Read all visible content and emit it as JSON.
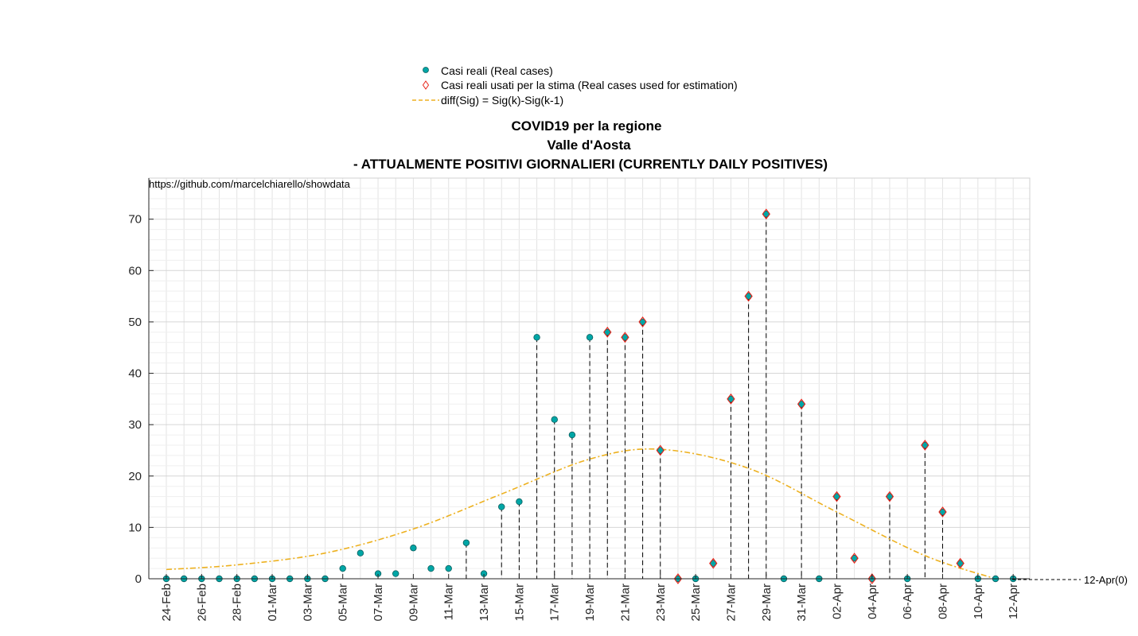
{
  "chart_data": {
    "type": "scatter",
    "title_lines": [
      "COVID19 per la regione",
      "Valle d'Aosta",
      "- ATTUALMENTE POSITIVI GIORNALIERI (CURRENTLY DAILY POSITIVES)"
    ],
    "source_text": "https://github.com/marcelchiarello/showdata",
    "end_label": "12-Apr(0)",
    "xlabel": "",
    "ylabel": "",
    "ylim": [
      0,
      78
    ],
    "y_ticks": [
      0,
      10,
      20,
      30,
      40,
      50,
      60,
      70
    ],
    "grid": true,
    "legend_position": "top-center",
    "x": [
      "24-Feb",
      "25-Feb",
      "26-Feb",
      "27-Feb",
      "28-Feb",
      "29-Feb",
      "01-Mar",
      "02-Mar",
      "03-Mar",
      "04-Mar",
      "05-Mar",
      "06-Mar",
      "07-Mar",
      "08-Mar",
      "09-Mar",
      "10-Mar",
      "11-Mar",
      "12-Mar",
      "13-Mar",
      "14-Mar",
      "15-Mar",
      "16-Mar",
      "17-Mar",
      "18-Mar",
      "19-Mar",
      "20-Mar",
      "21-Mar",
      "22-Mar",
      "23-Mar",
      "24-Mar",
      "25-Mar",
      "26-Mar",
      "27-Mar",
      "28-Mar",
      "29-Mar",
      "30-Mar",
      "31-Mar",
      "01-Apr",
      "02-Apr",
      "03-Apr",
      "04-Apr",
      "05-Apr",
      "06-Apr",
      "07-Apr",
      "08-Apr",
      "09-Apr",
      "10-Apr",
      "11-Apr",
      "12-Apr"
    ],
    "x_tick_labels": [
      "24-Feb",
      "26-Feb",
      "28-Feb",
      "01-Mar",
      "03-Mar",
      "05-Mar",
      "07-Mar",
      "09-Mar",
      "11-Mar",
      "13-Mar",
      "15-Mar",
      "17-Mar",
      "19-Mar",
      "21-Mar",
      "23-Mar",
      "25-Mar",
      "27-Mar",
      "29-Mar",
      "31-Mar",
      "02-Apr",
      "04-Apr",
      "06-Apr",
      "08-Apr",
      "10-Apr",
      "12-Apr"
    ],
    "series": [
      {
        "name": "Casi reali (Real cases)",
        "marker": "circle",
        "color": "#00a6a6",
        "values": [
          0,
          0,
          0,
          0,
          0,
          0,
          0,
          0,
          0,
          0,
          2,
          5,
          1,
          1,
          6,
          2,
          2,
          7,
          1,
          14,
          15,
          47,
          31,
          28,
          47,
          48,
          47,
          50,
          25,
          0,
          0,
          3,
          35,
          55,
          71,
          0,
          34,
          0,
          16,
          4,
          0,
          16,
          0,
          26,
          13,
          3,
          0,
          0,
          0
        ]
      },
      {
        "name": "Casi reali usati per la stima (Real cases used for estimation)",
        "marker": "diamond",
        "color": "#e8261b",
        "x": [
          "20-Mar",
          "21-Mar",
          "22-Mar",
          "23-Mar",
          "24-Mar",
          "26-Mar",
          "27-Mar",
          "28-Mar",
          "29-Mar",
          "31-Mar",
          "02-Apr",
          "03-Apr",
          "04-Apr",
          "05-Apr",
          "07-Apr",
          "08-Apr",
          "09-Apr"
        ],
        "values": [
          48,
          47,
          50,
          25,
          0,
          3,
          35,
          55,
          71,
          34,
          16,
          4,
          0,
          16,
          26,
          13,
          3
        ]
      },
      {
        "name": "diff(Sig) = Sig(k)-Sig(k-1)",
        "marker": "dashed-line",
        "color": "#edb120",
        "x": [
          "24-Feb",
          "28-Feb",
          "04-Mar",
          "09-Mar",
          "14-Mar",
          "19-Mar",
          "23-Mar",
          "28-Mar",
          "02-Apr",
          "07-Apr",
          "11-Apr"
        ],
        "values": [
          1.8,
          2.7,
          5.0,
          9.7,
          16.5,
          23.3,
          25.2,
          21.5,
          13.0,
          4.5,
          0
        ]
      }
    ]
  }
}
